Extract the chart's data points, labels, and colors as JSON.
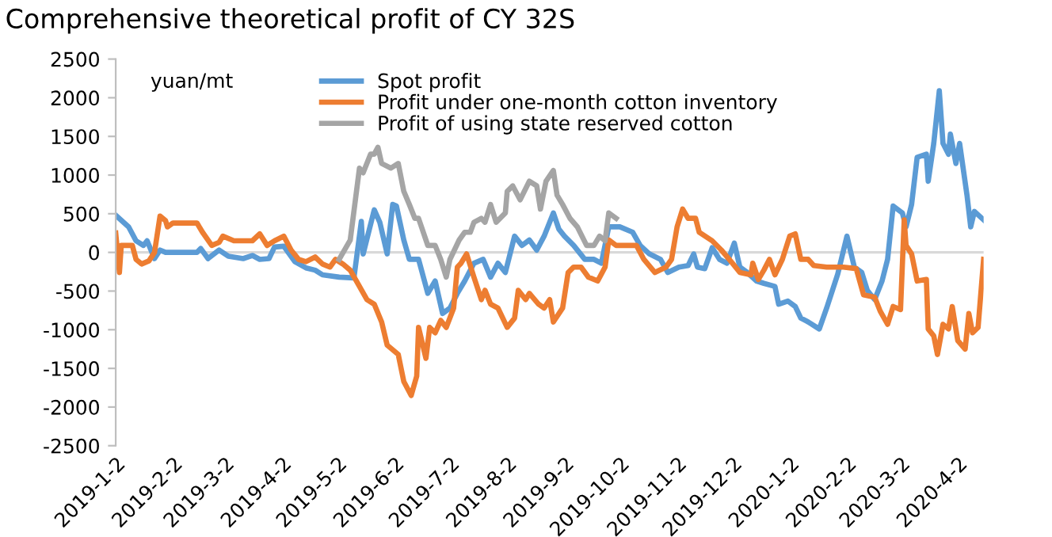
{
  "chart_data": {
    "type": "line",
    "title": "Comprehensive theoretical profit of CY 32S",
    "ylabel": "yuan/mt",
    "xlim": [
      "2019-01-02",
      "2020-04-16"
    ],
    "ylim": [
      -2500,
      2500
    ],
    "yticks": [
      -2500,
      -2000,
      -1500,
      -1000,
      -500,
      0,
      500,
      1000,
      1500,
      2000,
      2500
    ],
    "xticks": [
      {
        "value": "2019-01-02",
        "label": "2019-1-2"
      },
      {
        "value": "2019-02-02",
        "label": "2019-2-2"
      },
      {
        "value": "2019-03-02",
        "label": "2019-3-2"
      },
      {
        "value": "2019-04-02",
        "label": "2019-4-2"
      },
      {
        "value": "2019-05-02",
        "label": "2019-5-2"
      },
      {
        "value": "2019-06-02",
        "label": "2019-6-2"
      },
      {
        "value": "2019-07-02",
        "label": "2019-7-2"
      },
      {
        "value": "2019-08-02",
        "label": "2019-8-2"
      },
      {
        "value": "2019-09-02",
        "label": "2019-9-2"
      },
      {
        "value": "2019-10-02",
        "label": "2019-10-2"
      },
      {
        "value": "2019-11-02",
        "label": "2019-11-2"
      },
      {
        "value": "2019-12-02",
        "label": "2019-12-2"
      },
      {
        "value": "2020-01-02",
        "label": "2020-1-2"
      },
      {
        "value": "2020-02-02",
        "label": "2020-2-2"
      },
      {
        "value": "2020-03-02",
        "label": "2020-3-2"
      },
      {
        "value": "2020-04-02",
        "label": "2020-4-2"
      }
    ],
    "grid": false,
    "ref_lines": [
      {
        "axis": "y",
        "value": 0,
        "color": "#d9d9d9"
      }
    ],
    "legend": "top",
    "marker": "none",
    "line_style": "solid",
    "series": [
      {
        "name": "Spot profit",
        "color": "#5b9bd5",
        "x": [
          "2019-01-02",
          "2019-01-09",
          "2019-01-13",
          "2019-01-17",
          "2019-01-19",
          "2019-01-22",
          "2019-01-23",
          "2019-01-26",
          "2019-01-29",
          "2019-02-15",
          "2019-02-17",
          "2019-02-21",
          "2019-02-27",
          "2019-03-04",
          "2019-03-12",
          "2019-03-17",
          "2019-03-21",
          "2019-03-26",
          "2019-03-29",
          "2019-04-03",
          "2019-04-09",
          "2019-04-15",
          "2019-04-20",
          "2019-04-24",
          "2019-05-03",
          "2019-05-11",
          "2019-05-15",
          "2019-05-16",
          "2019-05-22",
          "2019-05-25",
          "2019-05-29",
          "2019-06-01",
          "2019-06-03",
          "2019-06-07",
          "2019-06-10",
          "2019-06-15",
          "2019-06-20",
          "2019-06-24",
          "2019-06-28",
          "2019-07-02",
          "2019-07-06",
          "2019-07-10",
          "2019-07-15",
          "2019-07-20",
          "2019-07-24",
          "2019-07-28",
          "2019-08-01",
          "2019-08-06",
          "2019-08-10",
          "2019-08-14",
          "2019-08-18",
          "2019-08-22",
          "2019-08-27",
          "2019-08-30",
          "2019-09-02",
          "2019-09-07",
          "2019-09-13",
          "2019-09-18",
          "2019-09-22",
          "2019-09-26",
          "2019-10-02",
          "2019-10-09",
          "2019-10-13",
          "2019-10-18",
          "2019-10-24",
          "2019-10-28",
          "2019-11-03",
          "2019-11-08",
          "2019-11-11",
          "2019-11-13",
          "2019-11-17",
          "2019-11-21",
          "2019-11-25",
          "2019-11-29",
          "2019-12-03",
          "2019-12-06",
          "2019-12-10",
          "2019-12-15",
          "2019-12-19",
          "2019-12-25",
          "2019-12-27",
          "2020-01-01",
          "2020-01-05",
          "2020-01-08",
          "2020-01-12",
          "2020-01-18",
          "2020-01-22",
          "2020-01-28",
          "2020-02-02",
          "2020-02-06",
          "2020-02-10",
          "2020-02-13",
          "2020-02-17",
          "2020-02-21",
          "2020-02-24",
          "2020-02-27",
          "2020-03-03",
          "2020-03-05",
          "2020-03-08",
          "2020-03-11",
          "2020-03-16",
          "2020-03-17",
          "2020-03-20",
          "2020-03-23",
          "2020-03-25",
          "2020-03-28",
          "2020-03-29",
          "2020-04-01",
          "2020-04-03",
          "2020-04-07",
          "2020-04-09",
          "2020-04-11",
          "2020-04-16"
        ],
        "values": [
          480,
          330,
          150,
          90,
          150,
          -20,
          -80,
          30,
          0,
          0,
          50,
          -80,
          30,
          -50,
          -80,
          -40,
          -90,
          -80,
          70,
          80,
          -120,
          -200,
          -230,
          -290,
          -320,
          -330,
          400,
          -20,
          550,
          390,
          -20,
          620,
          600,
          160,
          -90,
          -90,
          -530,
          -370,
          -790,
          -720,
          -530,
          -370,
          -140,
          -90,
          -320,
          -140,
          -260,
          210,
          90,
          160,
          30,
          210,
          510,
          300,
          210,
          90,
          -90,
          -90,
          -140,
          330,
          330,
          260,
          90,
          -20,
          -90,
          -260,
          -190,
          -170,
          -20,
          -190,
          -210,
          60,
          -90,
          -140,
          120,
          -190,
          -260,
          -370,
          -400,
          -440,
          -670,
          -630,
          -700,
          -850,
          -900,
          -990,
          -720,
          -280,
          210,
          -190,
          -260,
          -490,
          -610,
          -370,
          -90,
          600,
          510,
          330,
          620,
          1230,
          1270,
          920,
          1410,
          2090,
          1410,
          1270,
          1530,
          1150,
          1410,
          740,
          330,
          530,
          420
        ]
      },
      {
        "name": "Profit under one-month cotton inventory",
        "color": "#ed7d31",
        "x": [
          "2019-01-02",
          "2019-01-04",
          "2019-01-05",
          "2019-01-11",
          "2019-01-13",
          "2019-01-16",
          "2019-01-20",
          "2019-01-23",
          "2019-01-26",
          "2019-01-29",
          "2019-01-30",
          "2019-02-02",
          "2019-02-15",
          "2019-02-18",
          "2019-02-23",
          "2019-02-27",
          "2019-03-01",
          "2019-03-07",
          "2019-03-17",
          "2019-03-21",
          "2019-03-25",
          "2019-03-29",
          "2019-04-03",
          "2019-04-07",
          "2019-04-11",
          "2019-04-15",
          "2019-04-20",
          "2019-04-24",
          "2019-04-28",
          "2019-05-01",
          "2019-05-05",
          "2019-05-09",
          "2019-05-14",
          "2019-05-18",
          "2019-05-22",
          "2019-05-26",
          "2019-05-29",
          "2019-06-04",
          "2019-06-07",
          "2019-06-11",
          "2019-06-14",
          "2019-06-15",
          "2019-06-19",
          "2019-06-21",
          "2019-06-24",
          "2019-06-27",
          "2019-06-30",
          "2019-07-04",
          "2019-07-06",
          "2019-07-08",
          "2019-07-11",
          "2019-07-15",
          "2019-07-19",
          "2019-07-21",
          "2019-07-24",
          "2019-07-28",
          "2019-08-02",
          "2019-08-06",
          "2019-08-08",
          "2019-08-12",
          "2019-08-14",
          "2019-08-19",
          "2019-08-22",
          "2019-08-25",
          "2019-08-27",
          "2019-09-01",
          "2019-09-04",
          "2019-09-07",
          "2019-09-11",
          "2019-09-15",
          "2019-09-20",
          "2019-09-24",
          "2019-09-26",
          "2019-09-30",
          "2019-10-11",
          "2019-10-15",
          "2019-10-21",
          "2019-10-27",
          "2019-10-30",
          "2019-11-02",
          "2019-11-05",
          "2019-11-08",
          "2019-11-12",
          "2019-11-14",
          "2019-11-21",
          "2019-11-26",
          "2019-12-02",
          "2019-12-06",
          "2019-12-12",
          "2019-12-13",
          "2019-12-16",
          "2019-12-19",
          "2019-12-22",
          "2019-12-25",
          "2019-12-29",
          "2020-01-02",
          "2020-01-05",
          "2020-01-08",
          "2020-01-12",
          "2020-01-15",
          "2020-01-22",
          "2020-01-31",
          "2020-02-07",
          "2020-02-11",
          "2020-02-17",
          "2020-02-20",
          "2020-02-24",
          "2020-02-27",
          "2020-03-02",
          "2020-03-04",
          "2020-03-05",
          "2020-03-08",
          "2020-03-11",
          "2020-03-16",
          "2020-03-17",
          "2020-03-20",
          "2020-03-22",
          "2020-03-25",
          "2020-03-28",
          "2020-03-30",
          "2020-04-02",
          "2020-04-06",
          "2020-04-08",
          "2020-04-10",
          "2020-04-13",
          "2020-04-16"
        ],
        "values": [
          250,
          -260,
          90,
          90,
          -90,
          -150,
          -110,
          0,
          470,
          410,
          330,
          380,
          380,
          260,
          90,
          130,
          210,
          150,
          150,
          240,
          90,
          150,
          210,
          30,
          -90,
          -120,
          -60,
          -150,
          -190,
          -90,
          -150,
          -230,
          -440,
          -610,
          -670,
          -900,
          -1200,
          -1320,
          -1670,
          -1850,
          -1600,
          -970,
          -1370,
          -970,
          -1040,
          -880,
          -970,
          -720,
          -190,
          -140,
          -20,
          -320,
          -610,
          -490,
          -670,
          -720,
          -970,
          -850,
          -490,
          -610,
          -530,
          -670,
          -720,
          -610,
          -900,
          -720,
          -260,
          -190,
          -190,
          -320,
          -370,
          -190,
          160,
          90,
          90,
          -90,
          -260,
          -190,
          -90,
          330,
          560,
          440,
          440,
          260,
          150,
          30,
          -140,
          -260,
          -290,
          -140,
          -350,
          -230,
          -90,
          -290,
          -90,
          210,
          240,
          -90,
          -90,
          -170,
          -190,
          -190,
          -210,
          -550,
          -580,
          -760,
          -930,
          -700,
          -740,
          420,
          90,
          -20,
          -370,
          -350,
          -990,
          -1080,
          -1320,
          -930,
          -990,
          -700,
          -1140,
          -1250,
          -790,
          -1040,
          -970,
          -90
        ]
      },
      {
        "name": "Profit of using state reserved cotton",
        "color": "#a5a5a5",
        "x": [
          "2019-05-03",
          "2019-05-09",
          "2019-05-14",
          "2019-05-16",
          "2019-05-20",
          "2019-05-22",
          "2019-05-24",
          "2019-05-26",
          "2019-05-31",
          "2019-06-04",
          "2019-06-07",
          "2019-06-10",
          "2019-06-13",
          "2019-06-15",
          "2019-06-20",
          "2019-06-24",
          "2019-06-27",
          "2019-06-30",
          "2019-07-02",
          "2019-07-07",
          "2019-07-10",
          "2019-07-13",
          "2019-07-15",
          "2019-07-19",
          "2019-07-21",
          "2019-07-24",
          "2019-07-27",
          "2019-08-01",
          "2019-08-02",
          "2019-08-05",
          "2019-08-09",
          "2019-08-14",
          "2019-08-18",
          "2019-08-20",
          "2019-08-23",
          "2019-08-27",
          "2019-08-29",
          "2019-09-01",
          "2019-09-05",
          "2019-09-09",
          "2019-09-14",
          "2019-09-18",
          "2019-09-21",
          "2019-09-24",
          "2019-09-26",
          "2019-09-30"
        ],
        "values": [
          -90,
          160,
          1090,
          1030,
          1270,
          1270,
          1360,
          1150,
          1090,
          1150,
          790,
          620,
          440,
          440,
          90,
          90,
          -90,
          -320,
          -90,
          160,
          260,
          260,
          390,
          440,
          390,
          620,
          390,
          510,
          790,
          860,
          680,
          920,
          860,
          560,
          920,
          1060,
          740,
          620,
          440,
          330,
          90,
          90,
          210,
          150,
          510,
          440
        ]
      }
    ]
  }
}
